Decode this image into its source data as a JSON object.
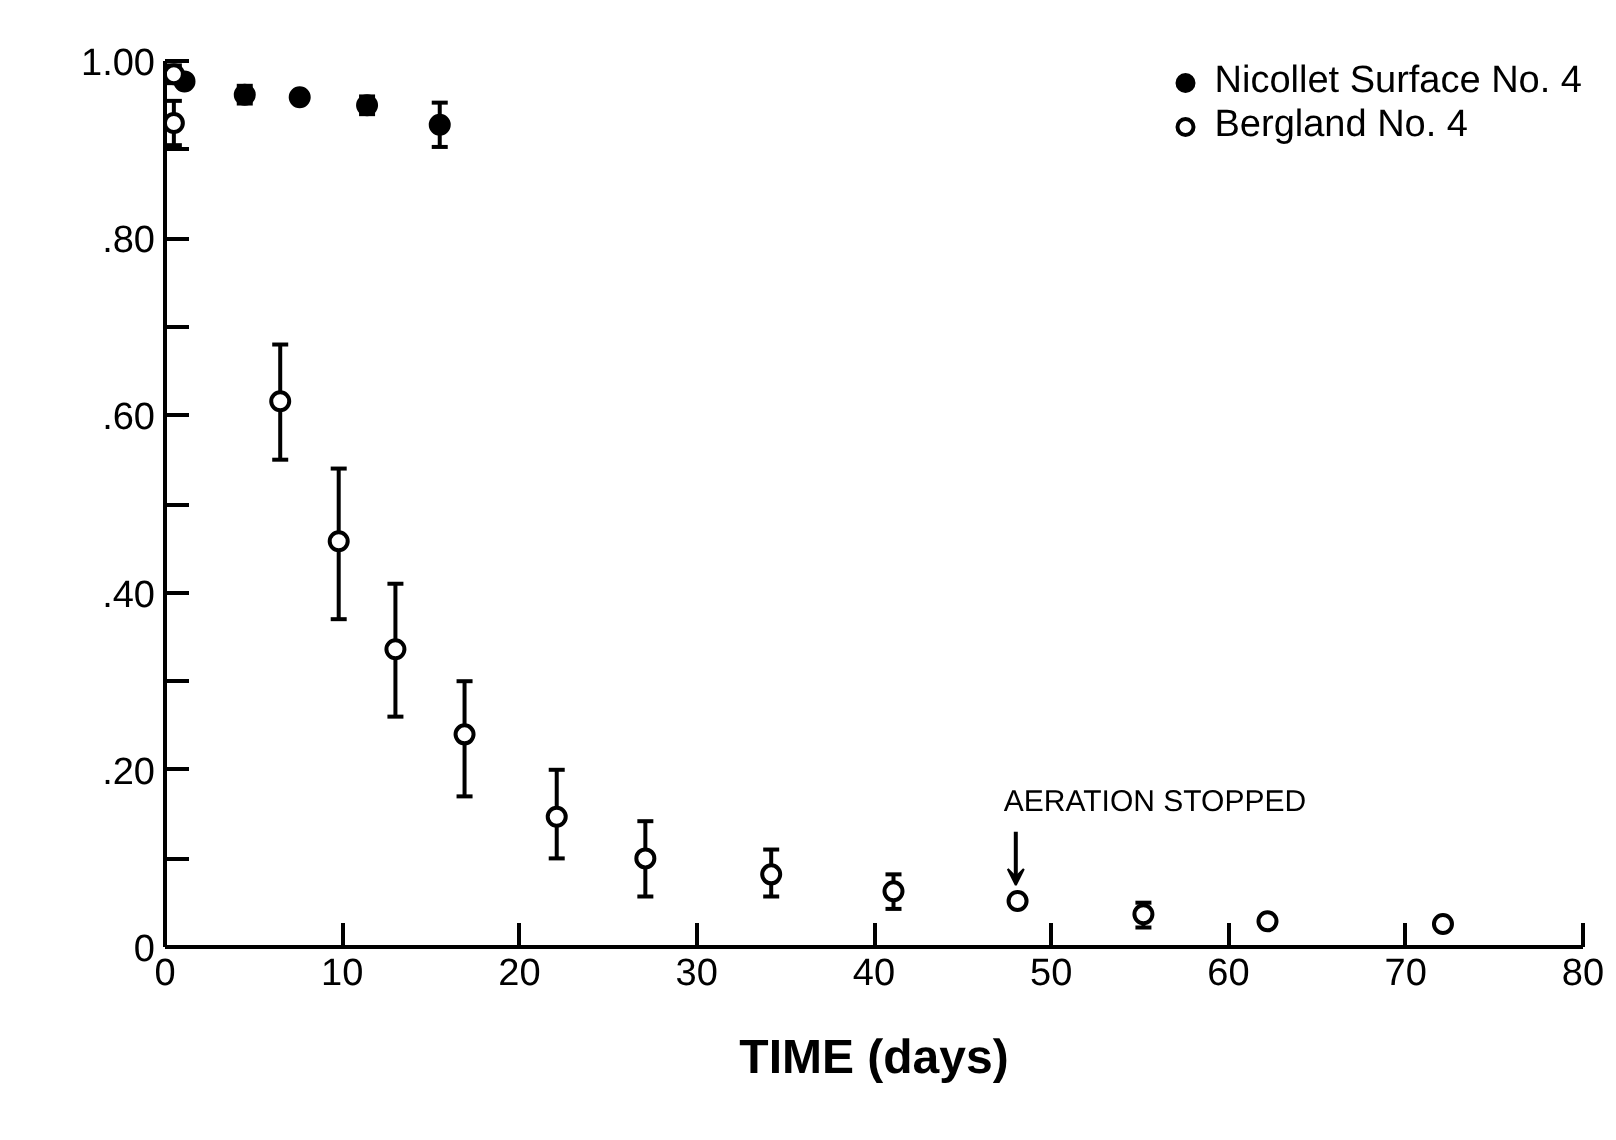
{
  "chart_data": {
    "type": "scatter",
    "xlabel": "TIME (days)",
    "xlim": [
      0,
      80
    ],
    "ylim": [
      0,
      1.0
    ],
    "xticks": [
      0,
      10,
      20,
      30,
      40,
      50,
      60,
      70,
      80
    ],
    "yticks": [
      {
        "value": 0,
        "label": "0"
      },
      {
        "value": 0.1,
        "label": null
      },
      {
        "value": 0.2,
        "label": ".20"
      },
      {
        "value": 0.3,
        "label": null
      },
      {
        "value": 0.4,
        "label": ".40"
      },
      {
        "value": 0.5,
        "label": null
      },
      {
        "value": 0.6,
        "label": ".60"
      },
      {
        "value": 0.7,
        "label": null
      },
      {
        "value": 0.8,
        "label": ".80"
      },
      {
        "value": 0.9,
        "label": null
      },
      {
        "value": 1.0,
        "label": "1.00"
      }
    ],
    "grid": false,
    "legend": "top right",
    "marker": "circle",
    "series": [
      {
        "name": "Nicollet Surface No. 4",
        "color": "#000000",
        "x": [
          1.1,
          4.5,
          7.6,
          11.4,
          15.5
        ],
        "values": [
          0.977,
          0.962,
          0.959,
          0.95,
          0.928
        ],
        "errors": [
          0.005,
          0.01,
          0.005,
          0.01,
          0.025
        ]
      },
      {
        "name": "Bergland No. 4",
        "color": "#000000",
        "x": [
          0.5,
          0.5,
          6.5,
          9.8,
          13.0,
          16.9,
          22.1,
          27.1,
          34.2,
          41.1,
          48.1,
          55.2,
          62.2,
          72.1
        ],
        "values": [
          0.985,
          0.93,
          0.616,
          0.458,
          0.336,
          0.24,
          0.147,
          0.1,
          0.082,
          0.063,
          0.052,
          0.037,
          0.029,
          0.026
        ],
        "errors": [
          0.01,
          0.025,
          [
            0.55,
            0.68
          ],
          [
            0.37,
            0.54
          ],
          [
            0.26,
            0.41
          ],
          [
            0.17,
            0.3
          ],
          [
            0.1,
            0.2
          ],
          [
            0.057,
            0.142
          ],
          [
            0.057,
            0.11
          ],
          [
            0.043,
            0.082
          ],
          null,
          [
            0.022,
            0.05
          ],
          null,
          null
        ]
      }
    ],
    "annotations": [
      {
        "text": "AERATION STOPPED",
        "x": 48,
        "y": 0.07
      }
    ]
  }
}
